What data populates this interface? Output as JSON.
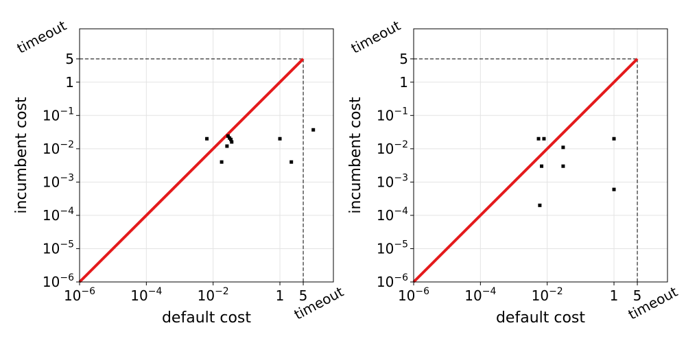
{
  "chart_data": [
    {
      "type": "scatter",
      "title": "",
      "xlabel": "default cost",
      "ylabel": "incumbent cost",
      "xscale": "log",
      "yscale": "log",
      "xlim": [
        1e-06,
        40
      ],
      "ylim": [
        1e-06,
        40
      ],
      "grid": true,
      "timeout_label": "timeout",
      "timeout_value": 5,
      "x_ticks": [
        {
          "value": 1e-06,
          "base": "10",
          "exp": "−6"
        },
        {
          "value": 0.0001,
          "base": "10",
          "exp": "−4"
        },
        {
          "value": 0.01,
          "base": "10",
          "exp": "−2"
        },
        {
          "value": 1,
          "base": "1",
          "exp": ""
        },
        {
          "value": 5,
          "base": "5",
          "exp": ""
        }
      ],
      "y_ticks": [
        {
          "value": 1e-06,
          "base": "10",
          "exp": "−6"
        },
        {
          "value": 1e-05,
          "base": "10",
          "exp": "−5"
        },
        {
          "value": 0.0001,
          "base": "10",
          "exp": "−4"
        },
        {
          "value": 0.001,
          "base": "10",
          "exp": "−3"
        },
        {
          "value": 0.01,
          "base": "10",
          "exp": "−2"
        },
        {
          "value": 0.1,
          "base": "10",
          "exp": "−1"
        },
        {
          "value": 1,
          "base": "1",
          "exp": ""
        },
        {
          "value": 5,
          "base": "5",
          "exp": ""
        }
      ],
      "points": [
        {
          "x": 0.0065,
          "y": 0.02
        },
        {
          "x": 0.018,
          "y": 0.004
        },
        {
          "x": 0.026,
          "y": 0.012
        },
        {
          "x": 0.028,
          "y": 0.024
        },
        {
          "x": 0.031,
          "y": 0.021
        },
        {
          "x": 0.034,
          "y": 0.019
        },
        {
          "x": 0.036,
          "y": 0.016
        },
        {
          "x": 1.0,
          "y": 0.02
        },
        {
          "x": 2.2,
          "y": 0.004
        },
        {
          "x": 10.0,
          "y": 0.037
        }
      ]
    },
    {
      "type": "scatter",
      "title": "",
      "xlabel": "default cost",
      "ylabel": "incumbent cost",
      "xscale": "log",
      "yscale": "log",
      "xlim": [
        1e-06,
        40
      ],
      "ylim": [
        1e-06,
        40
      ],
      "grid": true,
      "timeout_label": "timeout",
      "timeout_value": 5,
      "x_ticks": [
        {
          "value": 1e-06,
          "base": "10",
          "exp": "−6"
        },
        {
          "value": 0.0001,
          "base": "10",
          "exp": "−4"
        },
        {
          "value": 0.01,
          "base": "10",
          "exp": "−2"
        },
        {
          "value": 1,
          "base": "1",
          "exp": ""
        },
        {
          "value": 5,
          "base": "5",
          "exp": ""
        }
      ],
      "y_ticks": [
        {
          "value": 1e-06,
          "base": "10",
          "exp": "−6"
        },
        {
          "value": 1e-05,
          "base": "10",
          "exp": "−5"
        },
        {
          "value": 0.0001,
          "base": "10",
          "exp": "−4"
        },
        {
          "value": 0.001,
          "base": "10",
          "exp": "−3"
        },
        {
          "value": 0.01,
          "base": "10",
          "exp": "−2"
        },
        {
          "value": 0.1,
          "base": "10",
          "exp": "−1"
        },
        {
          "value": 1,
          "base": "1",
          "exp": ""
        },
        {
          "value": 5,
          "base": "5",
          "exp": ""
        }
      ],
      "points": [
        {
          "x": 0.0055,
          "y": 0.02
        },
        {
          "x": 0.006,
          "y": 0.0002
        },
        {
          "x": 0.0068,
          "y": 0.003
        },
        {
          "x": 0.008,
          "y": 0.02
        },
        {
          "x": 0.03,
          "y": 0.011
        },
        {
          "x": 0.03,
          "y": 0.003
        },
        {
          "x": 1.0,
          "y": 0.02
        },
        {
          "x": 1.0,
          "y": 0.0006
        }
      ]
    }
  ]
}
